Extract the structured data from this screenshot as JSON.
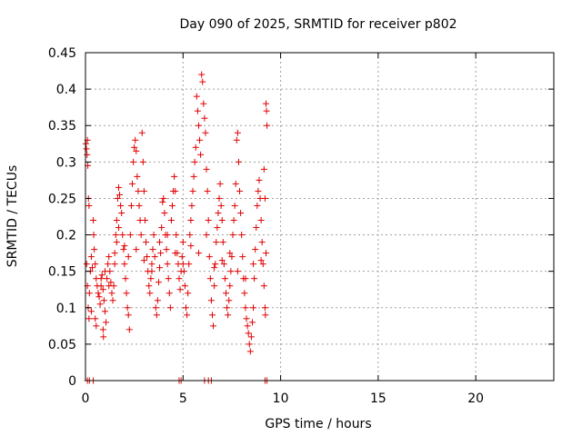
{
  "chart_data": {
    "type": "scatter",
    "title": "Day 090 of 2025, SRMTID for receiver p802",
    "xlabel": "GPS time / hours",
    "ylabel": "SRMTID / TECUs",
    "xlim": [
      0,
      24
    ],
    "ylim": [
      0,
      0.45
    ],
    "xticks": [
      0,
      5,
      10,
      15,
      20
    ],
    "xtick_labels": [
      "0",
      "5",
      "10",
      "15",
      "20"
    ],
    "yticks": [
      0,
      0.05,
      0.1,
      0.15,
      0.2,
      0.25,
      0.3,
      0.35,
      0.4,
      0.45
    ],
    "ytick_labels": [
      "0",
      "0.05",
      "0.1",
      "0.15",
      "0.2",
      "0.25",
      "0.3",
      "0.35",
      "0.4",
      "0.45"
    ],
    "grid": true,
    "marker": "+",
    "color": "#e00000",
    "series": [
      {
        "name": "SRMTID p802",
        "points": [
          [
            0.02,
            0.325
          ],
          [
            0.05,
            0.318
          ],
          [
            0.08,
            0.31
          ],
          [
            0.1,
            0.33
          ],
          [
            0.12,
            0.295
          ],
          [
            0.15,
            0.25
          ],
          [
            0.18,
            0.24
          ],
          [
            0.06,
            0.16
          ],
          [
            0.1,
            0.13
          ],
          [
            0.14,
            0.1
          ],
          [
            0.18,
            0.085
          ],
          [
            0.2,
            0.12
          ],
          [
            0.25,
            0.15
          ],
          [
            0.3,
            0.17
          ],
          [
            0.35,
            0.155
          ],
          [
            0.4,
            0.22
          ],
          [
            0.42,
            0.2
          ],
          [
            0.45,
            0.18
          ],
          [
            0.5,
            0.16
          ],
          [
            0.55,
            0.14
          ],
          [
            0.6,
            0.13
          ],
          [
            0.65,
            0.12
          ],
          [
            0.7,
            0.115
          ],
          [
            0.75,
            0.105
          ],
          [
            0.8,
            0.13
          ],
          [
            0.85,
            0.145
          ],
          [
            0.9,
            0.125
          ],
          [
            0.95,
            0.11
          ],
          [
            1.0,
            0.095
          ],
          [
            1.05,
            0.08
          ],
          [
            0.9,
            0.07
          ],
          [
            0.92,
            0.06
          ],
          [
            0.5,
            0.085
          ],
          [
            0.55,
            0.075
          ],
          [
            0.3,
            0.095
          ],
          [
            1.1,
            0.14
          ],
          [
            1.15,
            0.16
          ],
          [
            1.2,
            0.17
          ],
          [
            1.25,
            0.15
          ],
          [
            1.3,
            0.135
          ],
          [
            1.35,
            0.12
          ],
          [
            1.4,
            0.11
          ],
          [
            1.45,
            0.13
          ],
          [
            1.5,
            0.16
          ],
          [
            1.55,
            0.2
          ],
          [
            1.6,
            0.22
          ],
          [
            1.65,
            0.25
          ],
          [
            1.7,
            0.265
          ],
          [
            1.75,
            0.255
          ],
          [
            1.8,
            0.24
          ],
          [
            1.85,
            0.23
          ],
          [
            1.9,
            0.2
          ],
          [
            1.95,
            0.18
          ],
          [
            2.0,
            0.16
          ],
          [
            2.05,
            0.14
          ],
          [
            2.1,
            0.12
          ],
          [
            2.15,
            0.1
          ],
          [
            2.2,
            0.09
          ],
          [
            2.25,
            0.07
          ],
          [
            2.0,
            0.185
          ],
          [
            1.7,
            0.21
          ],
          [
            1.6,
            0.19
          ],
          [
            1.5,
            0.175
          ],
          [
            2.3,
            0.2
          ],
          [
            2.35,
            0.24
          ],
          [
            2.4,
            0.27
          ],
          [
            2.45,
            0.3
          ],
          [
            2.5,
            0.32
          ],
          [
            2.55,
            0.33
          ],
          [
            2.6,
            0.315
          ],
          [
            2.65,
            0.28
          ],
          [
            2.7,
            0.26
          ],
          [
            2.75,
            0.24
          ],
          [
            2.8,
            0.22
          ],
          [
            2.85,
            0.2
          ],
          [
            2.9,
            0.34
          ],
          [
            2.95,
            0.3
          ],
          [
            3.0,
            0.26
          ],
          [
            3.05,
            0.22
          ],
          [
            3.1,
            0.19
          ],
          [
            3.15,
            0.17
          ],
          [
            3.2,
            0.15
          ],
          [
            3.25,
            0.13
          ],
          [
            3.3,
            0.12
          ],
          [
            3.35,
            0.14
          ],
          [
            3.4,
            0.16
          ],
          [
            3.45,
            0.18
          ],
          [
            3.5,
            0.2
          ],
          [
            3.55,
            0.17
          ],
          [
            3.6,
            0.1
          ],
          [
            3.65,
            0.09
          ],
          [
            3.7,
            0.11
          ],
          [
            3.75,
            0.135
          ],
          [
            3.8,
            0.155
          ],
          [
            3.85,
            0.175
          ],
          [
            3.9,
            0.21
          ],
          [
            3.95,
            0.245
          ],
          [
            4.0,
            0.25
          ],
          [
            4.05,
            0.23
          ],
          [
            4.1,
            0.2
          ],
          [
            4.15,
            0.18
          ],
          [
            4.2,
            0.16
          ],
          [
            4.25,
            0.14
          ],
          [
            4.3,
            0.12
          ],
          [
            4.35,
            0.1
          ],
          [
            4.4,
            0.22
          ],
          [
            4.45,
            0.24
          ],
          [
            4.5,
            0.26
          ],
          [
            4.55,
            0.28
          ],
          [
            4.6,
            0.26
          ],
          [
            4.65,
            0.2
          ],
          [
            4.7,
            0.175
          ],
          [
            4.75,
            0.16
          ],
          [
            4.8,
            0.14
          ],
          [
            4.85,
            0.125
          ],
          [
            4.9,
            0.15
          ],
          [
            4.95,
            0.17
          ],
          [
            5.0,
            0.19
          ],
          [
            5.05,
            0.15
          ],
          [
            5.1,
            0.13
          ],
          [
            5.15,
            0.1
          ],
          [
            5.2,
            0.09
          ],
          [
            5.25,
            0.12
          ],
          [
            5.3,
            0.16
          ],
          [
            5.35,
            0.2
          ],
          [
            5.4,
            0.22
          ],
          [
            5.45,
            0.24
          ],
          [
            5.5,
            0.26
          ],
          [
            5.55,
            0.28
          ],
          [
            5.6,
            0.3
          ],
          [
            5.65,
            0.32
          ],
          [
            5.7,
            0.39
          ],
          [
            5.75,
            0.37
          ],
          [
            5.8,
            0.35
          ],
          [
            5.85,
            0.33
          ],
          [
            5.9,
            0.31
          ],
          [
            5.95,
            0.42
          ],
          [
            6.0,
            0.41
          ],
          [
            6.05,
            0.38
          ],
          [
            6.1,
            0.36
          ],
          [
            6.15,
            0.34
          ],
          [
            6.2,
            0.29
          ],
          [
            6.25,
            0.26
          ],
          [
            6.3,
            0.22
          ],
          [
            6.35,
            0.17
          ],
          [
            6.4,
            0.14
          ],
          [
            6.45,
            0.11
          ],
          [
            6.5,
            0.09
          ],
          [
            6.55,
            0.075
          ],
          [
            6.6,
            0.13
          ],
          [
            6.65,
            0.16
          ],
          [
            6.7,
            0.19
          ],
          [
            6.75,
            0.21
          ],
          [
            6.8,
            0.23
          ],
          [
            6.85,
            0.25
          ],
          [
            6.9,
            0.27
          ],
          [
            6.95,
            0.24
          ],
          [
            7.0,
            0.22
          ],
          [
            7.05,
            0.19
          ],
          [
            7.1,
            0.16
          ],
          [
            7.15,
            0.14
          ],
          [
            7.2,
            0.12
          ],
          [
            7.25,
            0.1
          ],
          [
            7.3,
            0.09
          ],
          [
            7.35,
            0.11
          ],
          [
            7.4,
            0.13
          ],
          [
            7.45,
            0.15
          ],
          [
            7.5,
            0.17
          ],
          [
            7.55,
            0.2
          ],
          [
            7.6,
            0.22
          ],
          [
            7.65,
            0.24
          ],
          [
            7.7,
            0.27
          ],
          [
            7.75,
            0.33
          ],
          [
            7.8,
            0.34
          ],
          [
            7.85,
            0.3
          ],
          [
            7.9,
            0.26
          ],
          [
            7.95,
            0.23
          ],
          [
            8.0,
            0.2
          ],
          [
            8.05,
            0.17
          ],
          [
            8.1,
            0.14
          ],
          [
            8.15,
            0.12
          ],
          [
            8.2,
            0.1
          ],
          [
            8.25,
            0.085
          ],
          [
            8.3,
            0.075
          ],
          [
            8.35,
            0.065
          ],
          [
            8.4,
            0.05
          ],
          [
            8.45,
            0.04
          ],
          [
            8.5,
            0.06
          ],
          [
            8.55,
            0.08
          ],
          [
            8.6,
            0.1
          ],
          [
            8.65,
            0.14
          ],
          [
            8.7,
            0.18
          ],
          [
            8.75,
            0.21
          ],
          [
            8.8,
            0.24
          ],
          [
            8.85,
            0.26
          ],
          [
            8.9,
            0.275
          ],
          [
            8.95,
            0.25
          ],
          [
            9.0,
            0.22
          ],
          [
            9.05,
            0.19
          ],
          [
            9.1,
            0.16
          ],
          [
            9.15,
            0.13
          ],
          [
            9.2,
            0.1
          ],
          [
            9.22,
            0.09
          ],
          [
            9.25,
            0.38
          ],
          [
            9.28,
            0.37
          ],
          [
            9.3,
            0.35
          ],
          [
            9.15,
            0.29
          ],
          [
            9.2,
            0.25
          ],
          [
            9.25,
            0.175
          ],
          [
            0.8,
            0.14
          ],
          [
            1.0,
            0.15
          ],
          [
            1.2,
            0.13
          ],
          [
            2.2,
            0.17
          ],
          [
            2.6,
            0.18
          ],
          [
            3.0,
            0.165
          ],
          [
            3.4,
            0.15
          ],
          [
            3.8,
            0.19
          ],
          [
            4.2,
            0.2
          ],
          [
            4.6,
            0.175
          ],
          [
            5.0,
            0.16
          ],
          [
            5.4,
            0.185
          ],
          [
            5.8,
            0.175
          ],
          [
            6.2,
            0.2
          ],
          [
            6.6,
            0.155
          ],
          [
            7.0,
            0.165
          ],
          [
            7.4,
            0.175
          ],
          [
            7.8,
            0.15
          ],
          [
            8.2,
            0.14
          ],
          [
            8.6,
            0.16
          ],
          [
            9.0,
            0.165
          ],
          [
            0.1,
            0.0
          ],
          [
            0.2,
            0.0
          ],
          [
            0.4,
            0.0
          ],
          [
            4.8,
            0.0
          ],
          [
            4.9,
            0.0
          ],
          [
            6.1,
            0.0
          ],
          [
            6.3,
            0.0
          ],
          [
            6.45,
            0.0
          ],
          [
            9.2,
            0.0
          ],
          [
            9.3,
            0.0
          ]
        ]
      }
    ]
  }
}
